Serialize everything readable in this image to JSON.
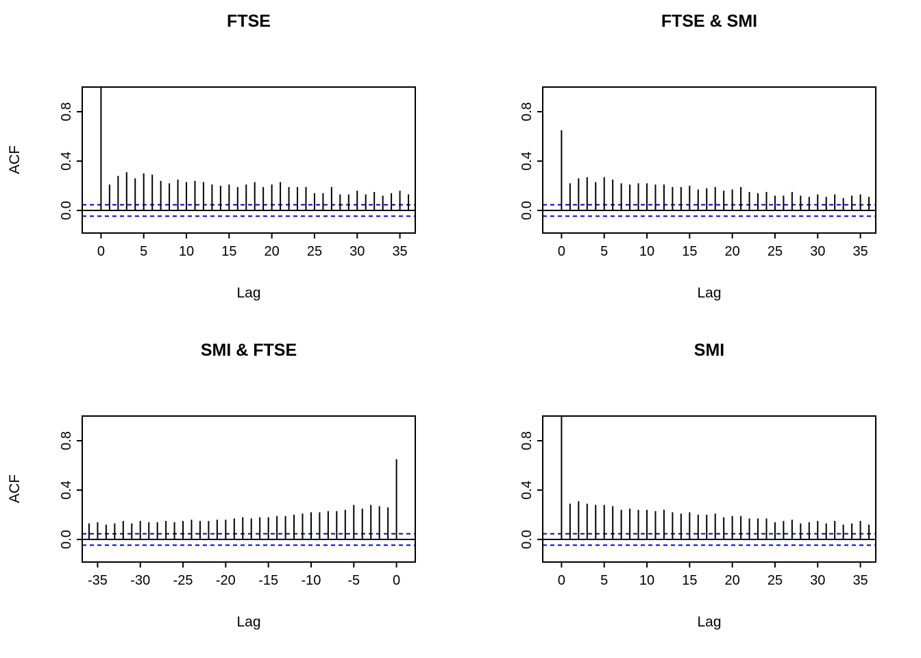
{
  "figure": {
    "background": "#ffffff",
    "bar_color": "#000000",
    "axis_color": "#000000",
    "conf_color": "#0000cc",
    "zero_line_color": "#000000"
  },
  "chart_data": [
    {
      "id": "ftse",
      "type": "bar",
      "title": "FTSE",
      "xlabel": "Lag",
      "ylabel": "ACF",
      "xlim": [
        -2.2,
        36.8
      ],
      "ylim": [
        -0.183,
        1.0
      ],
      "xticks": [
        0,
        5,
        10,
        15,
        20,
        25,
        30,
        35
      ],
      "yticks": [
        "0.0",
        "0.4",
        "0.8"
      ],
      "ytick_values": [
        0.0,
        0.4,
        0.8
      ],
      "conf_upper": 0.046,
      "conf_lower": -0.046,
      "grid": false,
      "lags": [
        0,
        1,
        2,
        3,
        4,
        5,
        6,
        7,
        8,
        9,
        10,
        11,
        12,
        13,
        14,
        15,
        16,
        17,
        18,
        19,
        20,
        21,
        22,
        23,
        24,
        25,
        26,
        27,
        28,
        29,
        30,
        31,
        32,
        33,
        34,
        35,
        36
      ],
      "values": [
        1.0,
        0.21,
        0.28,
        0.31,
        0.26,
        0.3,
        0.29,
        0.24,
        0.22,
        0.25,
        0.23,
        0.24,
        0.23,
        0.21,
        0.2,
        0.21,
        0.19,
        0.21,
        0.23,
        0.19,
        0.21,
        0.23,
        0.19,
        0.19,
        0.19,
        0.14,
        0.14,
        0.19,
        0.13,
        0.13,
        0.16,
        0.13,
        0.15,
        0.12,
        0.14,
        0.16,
        0.13
      ]
    },
    {
      "id": "ftse-smi",
      "type": "bar",
      "title": "FTSE & SMI",
      "xlabel": "Lag",
      "ylabel": "",
      "xlim": [
        -2.2,
        36.8
      ],
      "ylim": [
        -0.183,
        1.0
      ],
      "xticks": [
        0,
        5,
        10,
        15,
        20,
        25,
        30,
        35
      ],
      "yticks": [
        "0.0",
        "0.4",
        "0.8"
      ],
      "ytick_values": [
        0.0,
        0.4,
        0.8
      ],
      "conf_upper": 0.046,
      "conf_lower": -0.046,
      "grid": false,
      "lags": [
        0,
        1,
        2,
        3,
        4,
        5,
        6,
        7,
        8,
        9,
        10,
        11,
        12,
        13,
        14,
        15,
        16,
        17,
        18,
        19,
        20,
        21,
        22,
        23,
        24,
        25,
        26,
        27,
        28,
        29,
        30,
        31,
        32,
        33,
        34,
        35,
        36
      ],
      "values": [
        0.65,
        0.22,
        0.26,
        0.27,
        0.23,
        0.27,
        0.25,
        0.22,
        0.21,
        0.22,
        0.22,
        0.21,
        0.21,
        0.19,
        0.19,
        0.2,
        0.17,
        0.18,
        0.19,
        0.16,
        0.17,
        0.19,
        0.15,
        0.14,
        0.15,
        0.12,
        0.12,
        0.15,
        0.12,
        0.11,
        0.13,
        0.11,
        0.13,
        0.1,
        0.12,
        0.13,
        0.11
      ]
    },
    {
      "id": "smi-ftse",
      "type": "bar",
      "title": "SMI & FTSE",
      "xlabel": "Lag",
      "ylabel": "ACF",
      "xlim": [
        -36.8,
        2.2
      ],
      "ylim": [
        -0.183,
        1.0
      ],
      "xticks": [
        -35,
        -30,
        -25,
        -20,
        -15,
        -10,
        -5,
        0
      ],
      "yticks": [
        "0.0",
        "0.4",
        "0.8"
      ],
      "ytick_values": [
        0.0,
        0.4,
        0.8
      ],
      "conf_upper": 0.046,
      "conf_lower": -0.046,
      "grid": false,
      "lags": [
        -36,
        -35,
        -34,
        -33,
        -32,
        -31,
        -30,
        -29,
        -28,
        -27,
        -26,
        -25,
        -24,
        -23,
        -22,
        -21,
        -20,
        -19,
        -18,
        -17,
        -16,
        -15,
        -14,
        -13,
        -12,
        -11,
        -10,
        -9,
        -8,
        -7,
        -6,
        -5,
        -4,
        -3,
        -2,
        -1,
        0
      ],
      "values": [
        0.13,
        0.14,
        0.12,
        0.13,
        0.15,
        0.13,
        0.15,
        0.14,
        0.14,
        0.15,
        0.14,
        0.15,
        0.16,
        0.15,
        0.15,
        0.16,
        0.16,
        0.17,
        0.18,
        0.17,
        0.18,
        0.18,
        0.19,
        0.19,
        0.2,
        0.21,
        0.22,
        0.22,
        0.23,
        0.23,
        0.24,
        0.28,
        0.25,
        0.28,
        0.27,
        0.26,
        0.65
      ]
    },
    {
      "id": "smi",
      "type": "bar",
      "title": "SMI",
      "xlabel": "Lag",
      "ylabel": "",
      "xlim": [
        -2.2,
        36.8
      ],
      "ylim": [
        -0.183,
        1.0
      ],
      "xticks": [
        0,
        5,
        10,
        15,
        20,
        25,
        30,
        35
      ],
      "yticks": [
        "0.0",
        "0.4",
        "0.8"
      ],
      "ytick_values": [
        0.0,
        0.4,
        0.8
      ],
      "conf_upper": 0.046,
      "conf_lower": -0.046,
      "grid": false,
      "lags": [
        0,
        1,
        2,
        3,
        4,
        5,
        6,
        7,
        8,
        9,
        10,
        11,
        12,
        13,
        14,
        15,
        16,
        17,
        18,
        19,
        20,
        21,
        22,
        23,
        24,
        25,
        26,
        27,
        28,
        29,
        30,
        31,
        32,
        33,
        34,
        35,
        36
      ],
      "values": [
        1.0,
        0.29,
        0.31,
        0.29,
        0.28,
        0.28,
        0.27,
        0.24,
        0.25,
        0.24,
        0.24,
        0.23,
        0.24,
        0.22,
        0.21,
        0.22,
        0.2,
        0.2,
        0.21,
        0.18,
        0.19,
        0.19,
        0.17,
        0.17,
        0.17,
        0.14,
        0.15,
        0.16,
        0.13,
        0.14,
        0.15,
        0.13,
        0.15,
        0.12,
        0.13,
        0.15,
        0.12
      ]
    }
  ]
}
